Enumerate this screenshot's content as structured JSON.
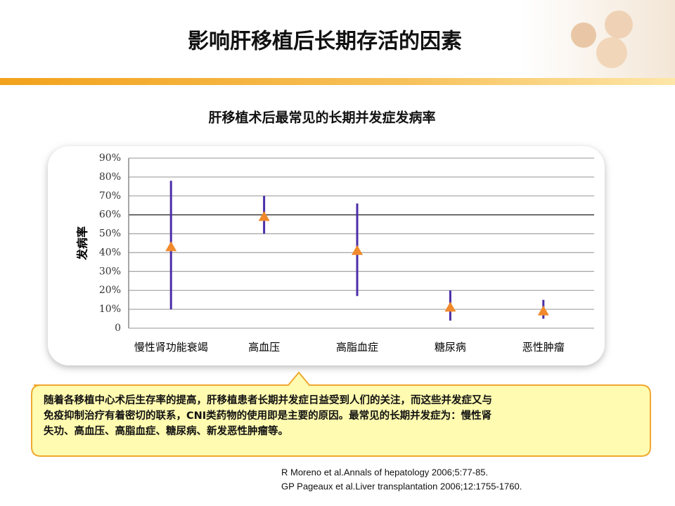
{
  "slide_title": "影响肝移植后长期存活的因素",
  "chart_data": {
    "type": "range",
    "title": "肝移植术后最常见的长期并发症发病率",
    "y_label": "发病率",
    "categories": [
      "慢性肾功能衰竭",
      "高血压",
      "高脂血症",
      "糖尿病",
      "恶性肿瘤"
    ],
    "values": [
      43,
      59,
      41,
      11,
      9
    ],
    "low": [
      10,
      50,
      17,
      4,
      5
    ],
    "high": [
      78,
      70,
      66,
      20,
      15
    ],
    "color": "#4b2ea8",
    "marker_color": "#f08a2c",
    "ylim": [
      0,
      90
    ],
    "yticks": [
      0,
      {
        "value": 10,
        "label": "10%"
      },
      {
        "value": 20,
        "label": "20%"
      },
      {
        "value": 30,
        "label": "30%"
      },
      {
        "value": 40,
        "label": "40%"
      },
      {
        "value": 50,
        "label": "50%"
      },
      {
        "value": 60,
        "label": "60%"
      },
      {
        "value": 70,
        "label": "70%"
      },
      {
        "value": 80,
        "label": "80%"
      },
      {
        "value": 90,
        "label": "90%"
      }
    ],
    "grid": true
  },
  "note_lines": [
    "随着各移植中心术后生存率的提高，肝移植患者长期并发症日益受到人们的关注，而这些并发症又与",
    "免疫抑制治疗有着密切的联系，CNI类药物的使用即是主要的原因。最常见的长期并发症为：慢性肾",
    "失功、高血压、高脂血症、糖尿病、新发恶性肿瘤等。"
  ],
  "references": [
    "R Moreno et al.Annals of hepatology 2006;5:77-85.",
    "GP Pageaux et al.Liver transplantation 2006;12:1755-1760."
  ]
}
